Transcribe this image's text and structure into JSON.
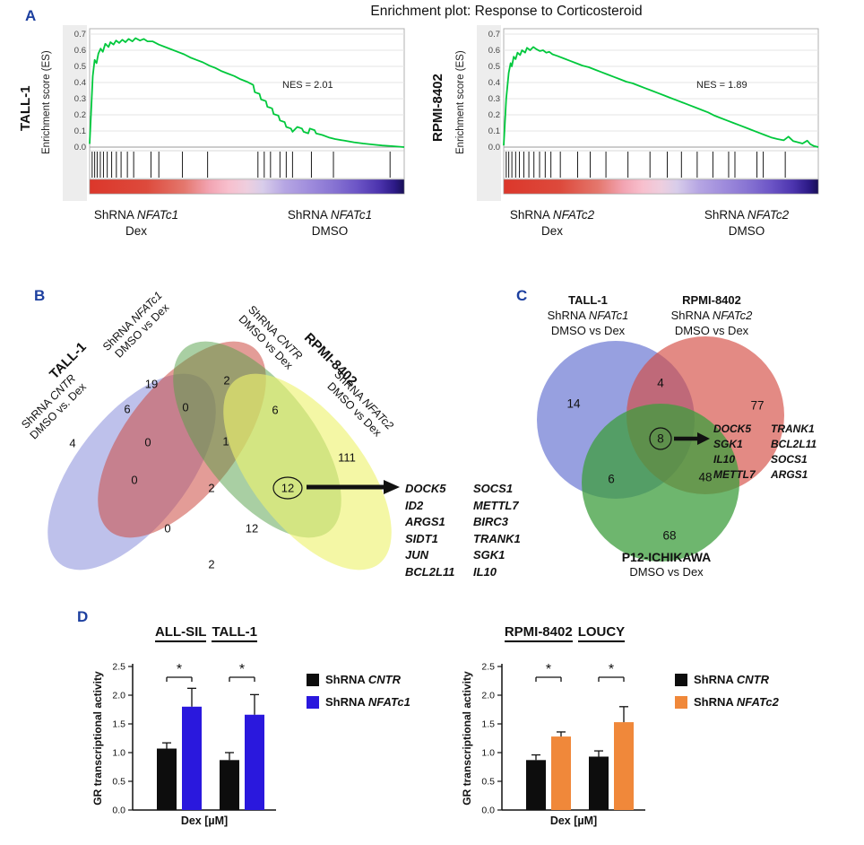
{
  "figure": {
    "title": "Enrichment plot: Response to Corticosteroid",
    "panel_letters": {
      "a": "A",
      "b": "B",
      "c": "C",
      "d": "D"
    }
  },
  "chart_data": [
    {
      "type": "line",
      "id": "gsea_tall1",
      "cell_line": "TALL-1",
      "ylabel": "Enrichment score (ES)",
      "nes": "NES = 2.01",
      "yticks": [
        0.0,
        0.1,
        0.2,
        0.3,
        0.4,
        0.5,
        0.6,
        0.7
      ],
      "ylim": [
        0,
        0.72
      ],
      "curve_color": "#00c83c",
      "es_curve": [
        [
          0,
          0.02
        ],
        [
          1,
          0.44
        ],
        [
          1.6,
          0.54
        ],
        [
          2.2,
          0.52
        ],
        [
          2.8,
          0.58
        ],
        [
          3.5,
          0.61
        ],
        [
          4.2,
          0.59
        ],
        [
          5,
          0.64
        ],
        [
          6,
          0.62
        ],
        [
          6.6,
          0.65
        ],
        [
          7.6,
          0.635
        ],
        [
          8.4,
          0.66
        ],
        [
          9.4,
          0.645
        ],
        [
          10.4,
          0.665
        ],
        [
          11.4,
          0.65
        ],
        [
          12.4,
          0.67
        ],
        [
          13.6,
          0.655
        ],
        [
          14.6,
          0.675
        ],
        [
          16,
          0.66
        ],
        [
          17.2,
          0.67
        ],
        [
          18.4,
          0.655
        ],
        [
          20,
          0.655
        ],
        [
          22,
          0.635
        ],
        [
          24,
          0.62
        ],
        [
          26,
          0.605
        ],
        [
          28,
          0.59
        ],
        [
          30,
          0.575
        ],
        [
          32,
          0.555
        ],
        [
          34,
          0.54
        ],
        [
          36,
          0.525
        ],
        [
          38,
          0.505
        ],
        [
          40,
          0.49
        ],
        [
          42,
          0.47
        ],
        [
          44,
          0.455
        ],
        [
          46,
          0.44
        ],
        [
          48,
          0.42
        ],
        [
          50,
          0.405
        ],
        [
          52,
          0.385
        ],
        [
          52.5,
          0.34
        ],
        [
          54,
          0.33
        ],
        [
          54.5,
          0.295
        ],
        [
          56,
          0.285
        ],
        [
          56.5,
          0.25
        ],
        [
          58,
          0.24
        ],
        [
          58.5,
          0.205
        ],
        [
          60,
          0.195
        ],
        [
          60.5,
          0.165
        ],
        [
          62,
          0.155
        ],
        [
          62.5,
          0.125
        ],
        [
          64,
          0.115
        ],
        [
          64.5,
          0.095
        ],
        [
          66,
          0.125
        ],
        [
          67.5,
          0.115
        ],
        [
          68,
          0.095
        ],
        [
          69.5,
          0.085
        ],
        [
          70,
          0.115
        ],
        [
          71.5,
          0.105
        ],
        [
          72,
          0.085
        ],
        [
          74,
          0.075
        ],
        [
          76,
          0.06
        ],
        [
          78,
          0.05
        ],
        [
          81,
          0.04
        ],
        [
          84,
          0.03
        ],
        [
          87,
          0.022
        ],
        [
          90,
          0.016
        ],
        [
          93,
          0.01
        ],
        [
          96,
          0.006
        ],
        [
          100,
          0
        ]
      ],
      "hits": [
        0.8,
        1.6,
        2.4,
        3.4,
        4.4,
        5.6,
        7,
        8.5,
        10,
        12,
        14,
        19.5,
        22,
        29.5,
        37.5,
        53.5,
        55.5,
        57.5,
        60.5,
        62.5,
        64.5,
        70.5,
        77.5,
        95.5
      ],
      "phenotype_gradient": [
        {
          "pos": 0,
          "color": "#dc372b"
        },
        {
          "pos": 0.18,
          "color": "#dd4a3c"
        },
        {
          "pos": 0.3,
          "color": "#e4776d"
        },
        {
          "pos": 0.38,
          "color": "#f2a4b2"
        },
        {
          "pos": 0.44,
          "color": "#f8bfcd"
        },
        {
          "pos": 0.5,
          "color": "#eecede"
        },
        {
          "pos": 0.55,
          "color": "#d8cdea"
        },
        {
          "pos": 0.62,
          "color": "#b6a6e3"
        },
        {
          "pos": 0.7,
          "color": "#9f8cdc"
        },
        {
          "pos": 0.78,
          "color": "#8672d2"
        },
        {
          "pos": 0.85,
          "color": "#6c55c6"
        },
        {
          "pos": 0.92,
          "color": "#4c34ae"
        },
        {
          "pos": 0.97,
          "color": "#2c1a86"
        },
        {
          "pos": 1,
          "color": "#180f55"
        }
      ],
      "groups": {
        "left": {
          "prefix": "ShRNA ",
          "gene": "NFATc1",
          "line2": "Dex"
        },
        "right": {
          "prefix": "ShRNA ",
          "gene": "NFATc1",
          "line2": "DMSO"
        }
      }
    },
    {
      "type": "line",
      "id": "gsea_rpmi",
      "cell_line": "RPMI-8402",
      "ylabel": "Enrichment score (ES)",
      "nes": "NES = 1.89",
      "yticks": [
        0.0,
        0.1,
        0.2,
        0.3,
        0.4,
        0.5,
        0.6,
        0.7
      ],
      "ylim": [
        0,
        0.72
      ],
      "curve_color": "#00c83c",
      "es_curve": [
        [
          0,
          0.01
        ],
        [
          0.8,
          0.3
        ],
        [
          1.6,
          0.46
        ],
        [
          2.2,
          0.52
        ],
        [
          2.6,
          0.5
        ],
        [
          3.2,
          0.56
        ],
        [
          3.8,
          0.545
        ],
        [
          4.4,
          0.585
        ],
        [
          5.2,
          0.57
        ],
        [
          5.8,
          0.6
        ],
        [
          6.8,
          0.585
        ],
        [
          7.4,
          0.615
        ],
        [
          8.4,
          0.6
        ],
        [
          9.4,
          0.62
        ],
        [
          10.5,
          0.605
        ],
        [
          11.5,
          0.595
        ],
        [
          12.5,
          0.6
        ],
        [
          13.5,
          0.585
        ],
        [
          14.5,
          0.59
        ],
        [
          15.5,
          0.575
        ],
        [
          17,
          0.565
        ],
        [
          19,
          0.55
        ],
        [
          21,
          0.535
        ],
        [
          23,
          0.52
        ],
        [
          25,
          0.505
        ],
        [
          27,
          0.495
        ],
        [
          29,
          0.48
        ],
        [
          31,
          0.465
        ],
        [
          33,
          0.45
        ],
        [
          35,
          0.435
        ],
        [
          37,
          0.42
        ],
        [
          39,
          0.405
        ],
        [
          41,
          0.395
        ],
        [
          43,
          0.38
        ],
        [
          45,
          0.365
        ],
        [
          47,
          0.35
        ],
        [
          49,
          0.335
        ],
        [
          51,
          0.32
        ],
        [
          53,
          0.305
        ],
        [
          55,
          0.29
        ],
        [
          57,
          0.275
        ],
        [
          59,
          0.26
        ],
        [
          61,
          0.245
        ],
        [
          63,
          0.23
        ],
        [
          65,
          0.215
        ],
        [
          67,
          0.195
        ],
        [
          69,
          0.18
        ],
        [
          71,
          0.165
        ],
        [
          73,
          0.15
        ],
        [
          75,
          0.135
        ],
        [
          77,
          0.12
        ],
        [
          79,
          0.105
        ],
        [
          81,
          0.09
        ],
        [
          83,
          0.075
        ],
        [
          85,
          0.06
        ],
        [
          87,
          0.05
        ],
        [
          89,
          0.042
        ],
        [
          90.5,
          0.065
        ],
        [
          92,
          0.038
        ],
        [
          93.5,
          0.03
        ],
        [
          95,
          0.022
        ],
        [
          96.5,
          0.04
        ],
        [
          97.5,
          0.018
        ],
        [
          98.5,
          0.008
        ],
        [
          100,
          0
        ]
      ],
      "hits": [
        0.8,
        1.6,
        2.6,
        3.8,
        5,
        6.4,
        8,
        9.6,
        11.4,
        13.2,
        15,
        18,
        23.5,
        27.5,
        32.5,
        39.5,
        46.5,
        52,
        56.5,
        61.5,
        66.5,
        71.5,
        73.5,
        80.5,
        82.5,
        89.5
      ],
      "phenotype_gradient": [
        {
          "pos": 0,
          "color": "#dc372b"
        },
        {
          "pos": 0.18,
          "color": "#dd4a3c"
        },
        {
          "pos": 0.3,
          "color": "#e4776d"
        },
        {
          "pos": 0.38,
          "color": "#f2a4b2"
        },
        {
          "pos": 0.44,
          "color": "#f8bfcd"
        },
        {
          "pos": 0.5,
          "color": "#eecede"
        },
        {
          "pos": 0.55,
          "color": "#d8cdea"
        },
        {
          "pos": 0.62,
          "color": "#b6a6e3"
        },
        {
          "pos": 0.7,
          "color": "#9f8cdc"
        },
        {
          "pos": 0.78,
          "color": "#8672d2"
        },
        {
          "pos": 0.85,
          "color": "#6c55c6"
        },
        {
          "pos": 0.92,
          "color": "#4c34ae"
        },
        {
          "pos": 0.97,
          "color": "#2c1a86"
        },
        {
          "pos": 1,
          "color": "#180f55"
        }
      ],
      "groups": {
        "left": {
          "prefix": "ShRNA ",
          "gene": "NFATc2",
          "line2": "Dex"
        },
        "right": {
          "prefix": "ShRNA ",
          "gene": "NFATc2",
          "line2": "DMSO"
        }
      }
    },
    {
      "type": "venn",
      "id": "venn4",
      "sets": [
        {
          "name": "TALL-1 ShRNA CNTR DMSO vs. Dex",
          "color": "#8289d8",
          "opacity": 0.52
        },
        {
          "name": "TALL-1 ShRNA NFATc1 DMSO vs Dex",
          "color": "#cc4a41",
          "opacity": 0.55
        },
        {
          "name": "RPMI-8402 ShRNA CNTR DMSO vs Dex",
          "color": "#53a047",
          "opacity": 0.5
        },
        {
          "name": "RPMI-8402 ShRNA NFATc2 DMSO vs Dex",
          "color": "#eef26e",
          "opacity": 0.62
        }
      ],
      "regions": {
        "A": 4,
        "B": 19,
        "C": 2,
        "D": 111,
        "AB": 6,
        "BC": 0,
        "CD": 6,
        "AC": 0,
        "BD": 1,
        "AD": 2,
        "ABC": 0,
        "ABD": 0,
        "ACD": 12,
        "BCD": 12,
        "ABCD": 2
      },
      "circled_region": "BCD",
      "labels": {
        "left_bold": "TALL-1",
        "left_set1": {
          "prefix": "ShRNA ",
          "gene": "CNTR",
          "line2": "DMSO vs. Dex"
        },
        "left_set2": {
          "prefix": "ShRNA ",
          "gene": "NFATc1",
          "line2": "DMSO vs Dex"
        },
        "right_set1": {
          "prefix": "ShRNA ",
          "gene": "CNTR",
          "line2": "DMSO vs Dex"
        },
        "right_bold": "RPMI-8402",
        "right_set2": {
          "prefix": "ShRNA ",
          "gene": "NFATc2",
          "line2": "DMSO vs Dex"
        }
      },
      "gene_list": [
        [
          "DOCK5",
          "SOCS1"
        ],
        [
          "ID2",
          "METTL7"
        ],
        [
          "ARGS1",
          "BIRC3"
        ],
        [
          "SIDT1",
          "TRANK1"
        ],
        [
          "JUN",
          "SGK1"
        ],
        [
          "BCL2L11",
          "IL10"
        ]
      ]
    },
    {
      "type": "venn",
      "id": "venn3",
      "sets": [
        {
          "name": "TALL-1 ShRNA NFATc1 DMSO vs Dex",
          "color": "#7d88d8",
          "opacity": 0.8
        },
        {
          "name": "RPMI-8402 ShRNA NFATc2 DMSO vs Dex",
          "color": "#d44c42",
          "opacity": 0.65
        },
        {
          "name": "P12-ICHIKAWA DMSO vs Dex",
          "color": "#3e9e3e",
          "opacity": 0.75
        }
      ],
      "regions": {
        "A": 14,
        "B": 77,
        "AB": 4,
        "ABC": 8,
        "AC": 6,
        "BC": 48,
        "C": 68
      },
      "circled_region": "ABC",
      "labels": {
        "left": {
          "bold": "TALL-1",
          "prefix": "ShRNA ",
          "gene": "NFATc1",
          "sub": "DMSO vs Dex"
        },
        "right": {
          "bold": "RPMI-8402",
          "prefix": "ShRNA ",
          "gene": "NFATc2",
          "sub": "DMSO vs Dex"
        },
        "bottom": {
          "bold": "P12-ICHIKAWA",
          "sub": "DMSO vs Dex"
        }
      },
      "gene_list": [
        [
          "DOCK5",
          "TRANK1"
        ],
        [
          "SGK1",
          "BCL2L11"
        ],
        [
          "IL10",
          "SOCS1"
        ],
        [
          "METTL7",
          "ARGS1"
        ]
      ]
    },
    {
      "type": "bar",
      "id": "gr_allsil_tall1",
      "titles": [
        "ALL-SIL",
        "TALL-1"
      ],
      "ylabel": "GR transcriptional activity",
      "xlabel": "Dex [µM]",
      "ylim": [
        0,
        2.5
      ],
      "yticks": [
        0,
        0.5,
        1,
        1.5,
        2,
        2.5
      ],
      "series": [
        {
          "prefix": "ShRNA ",
          "gene": "CNTR",
          "color": "#0d0d0d",
          "values": [
            1.07,
            0.87
          ],
          "errors": [
            0.1,
            0.13
          ]
        },
        {
          "prefix": "ShRNA ",
          "gene": "NFATc1",
          "color": "#2a18dd",
          "values": [
            1.8,
            1.66
          ],
          "errors": [
            0.32,
            0.35
          ]
        }
      ],
      "significance": [
        "*",
        "*"
      ]
    },
    {
      "type": "bar",
      "id": "gr_rpmi_loucy",
      "titles": [
        "RPMI-8402",
        "LOUCY"
      ],
      "ylabel": "GR transcriptional activity",
      "xlabel": "Dex [µM]",
      "ylim": [
        0,
        2.5
      ],
      "yticks": [
        0,
        0.5,
        1,
        1.5,
        2,
        2.5
      ],
      "series": [
        {
          "prefix": "ShRNA ",
          "gene": "CNTR",
          "color": "#0d0d0d",
          "values": [
            0.87,
            0.93
          ],
          "errors": [
            0.09,
            0.1
          ]
        },
        {
          "prefix": "ShRNA ",
          "gene": "NFATc2",
          "color": "#f0883a",
          "values": [
            1.28,
            1.53
          ],
          "errors": [
            0.08,
            0.27
          ]
        }
      ],
      "significance": [
        "*",
        "*"
      ]
    }
  ]
}
